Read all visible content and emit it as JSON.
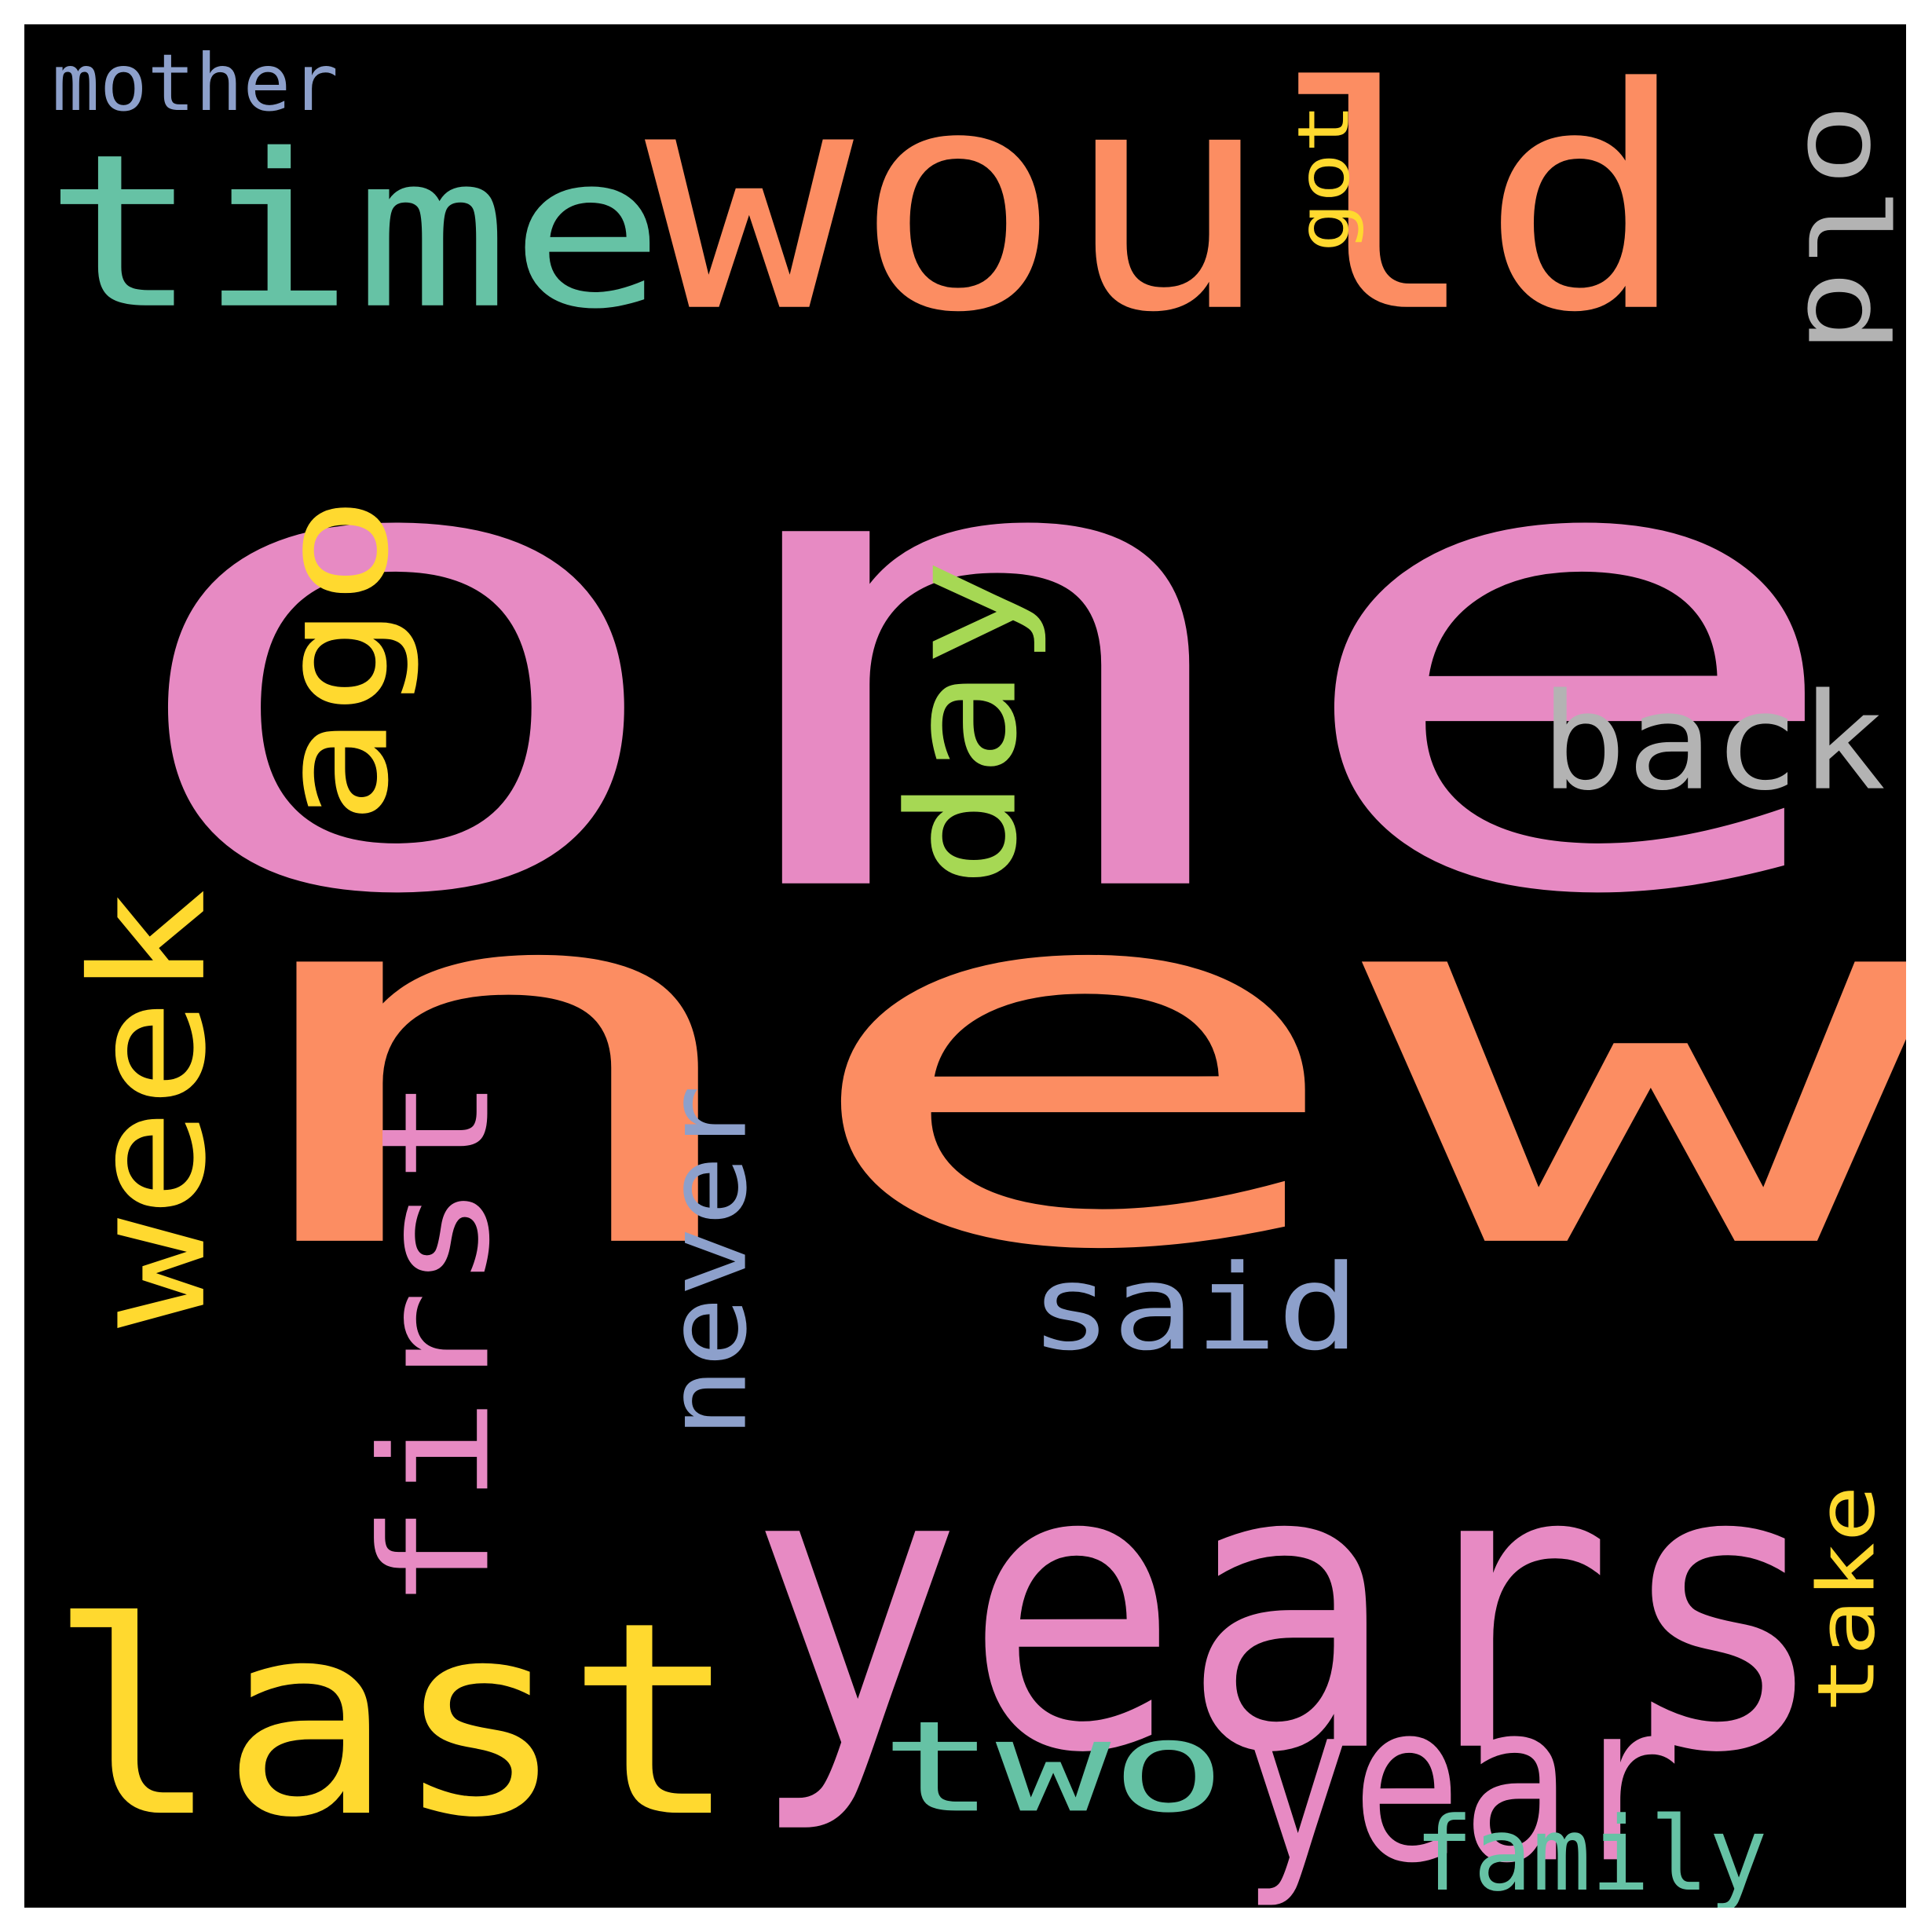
{
  "palette": {
    "background": "#000000",
    "frame": "#ffffff",
    "pink": "#e78ac3",
    "orange": "#fc8d62",
    "teal": "#66c2a5",
    "yellow": "#ffd92f",
    "lime": "#a6d854",
    "blue": "#8da0cb",
    "gray": "#b3b3b3"
  },
  "words": [
    {
      "id": "one",
      "text": "one",
      "color": "#e78ac3",
      "vertical": false
    },
    {
      "id": "new",
      "text": "new",
      "color": "#fc8d62",
      "vertical": false
    },
    {
      "id": "would",
      "text": "would",
      "color": "#fc8d62",
      "vertical": false
    },
    {
      "id": "time",
      "text": "time",
      "color": "#66c2a5",
      "vertical": false
    },
    {
      "id": "years",
      "text": "years",
      "color": "#e78ac3",
      "vertical": false
    },
    {
      "id": "last",
      "text": "last",
      "color": "#ffd92f",
      "vertical": false
    },
    {
      "id": "year",
      "text": "year",
      "color": "#e78ac3",
      "vertical": false
    },
    {
      "id": "two",
      "text": "two",
      "color": "#66c2a5",
      "vertical": false
    },
    {
      "id": "back",
      "text": "back",
      "color": "#b3b3b3",
      "vertical": false
    },
    {
      "id": "said",
      "text": "said",
      "color": "#8da0cb",
      "vertical": false
    },
    {
      "id": "family",
      "text": "family",
      "color": "#66c2a5",
      "vertical": false
    },
    {
      "id": "mother",
      "text": "mother",
      "color": "#8da0cb",
      "vertical": false
    },
    {
      "id": "week",
      "text": "week",
      "color": "#ffd92f",
      "vertical": true
    },
    {
      "id": "first",
      "text": "first",
      "color": "#e78ac3",
      "vertical": true
    },
    {
      "id": "ago",
      "text": "ago",
      "color": "#ffd92f",
      "vertical": true
    },
    {
      "id": "day",
      "text": "day",
      "color": "#a6d854",
      "vertical": true
    },
    {
      "id": "never",
      "text": "never",
      "color": "#8da0cb",
      "vertical": true
    },
    {
      "id": "old",
      "text": "old",
      "color": "#b3b3b3",
      "vertical": true,
      "flipped": true
    },
    {
      "id": "got",
      "text": "got",
      "color": "#ffd92f",
      "vertical": true
    },
    {
      "id": "take",
      "text": "take",
      "color": "#ffd92f",
      "vertical": true
    }
  ]
}
